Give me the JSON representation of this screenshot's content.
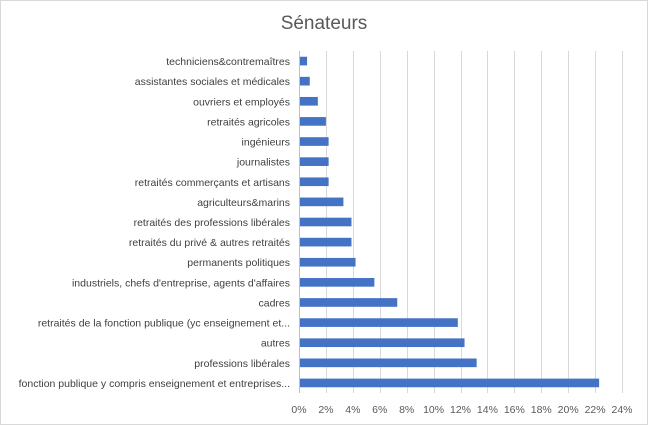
{
  "chart_data": {
    "type": "bar",
    "orientation": "horizontal",
    "title": "Sénateurs",
    "xlabel": "",
    "ylabel": "",
    "xlim": [
      0,
      24
    ],
    "x_ticks": [
      0,
      2,
      4,
      6,
      8,
      10,
      12,
      14,
      16,
      18,
      20,
      22,
      24
    ],
    "x_tick_labels": [
      "0%",
      "2%",
      "4%",
      "6%",
      "8%",
      "10%",
      "12%",
      "14%",
      "16%",
      "18%",
      "20%",
      "22%",
      "24%"
    ],
    "grid": true,
    "legend": "none",
    "bar_color": "#4472c4",
    "categories": [
      "techniciens&contremaîtres",
      "assistantes sociales et médicales",
      "ouvriers et employés",
      "retraités agricoles",
      "ingénieurs",
      "journalistes",
      "retraités commerçants et artisans",
      "agriculteurs&marins",
      "retraités des professions libérales",
      "retraités du privé & autres retraités",
      "permanents politiques",
      "industriels, chefs d'entreprise, agents d'affaires",
      "cadres",
      "retraités de la fonction publique (yc enseignement et...",
      "autres",
      "professions libérales",
      "fonction publique y compris enseignement et entreprises..."
    ],
    "values": [
      0.6,
      0.8,
      1.4,
      2.0,
      2.2,
      2.2,
      2.2,
      3.3,
      3.9,
      3.9,
      4.2,
      5.6,
      7.3,
      11.8,
      12.3,
      13.2,
      22.3
    ]
  }
}
